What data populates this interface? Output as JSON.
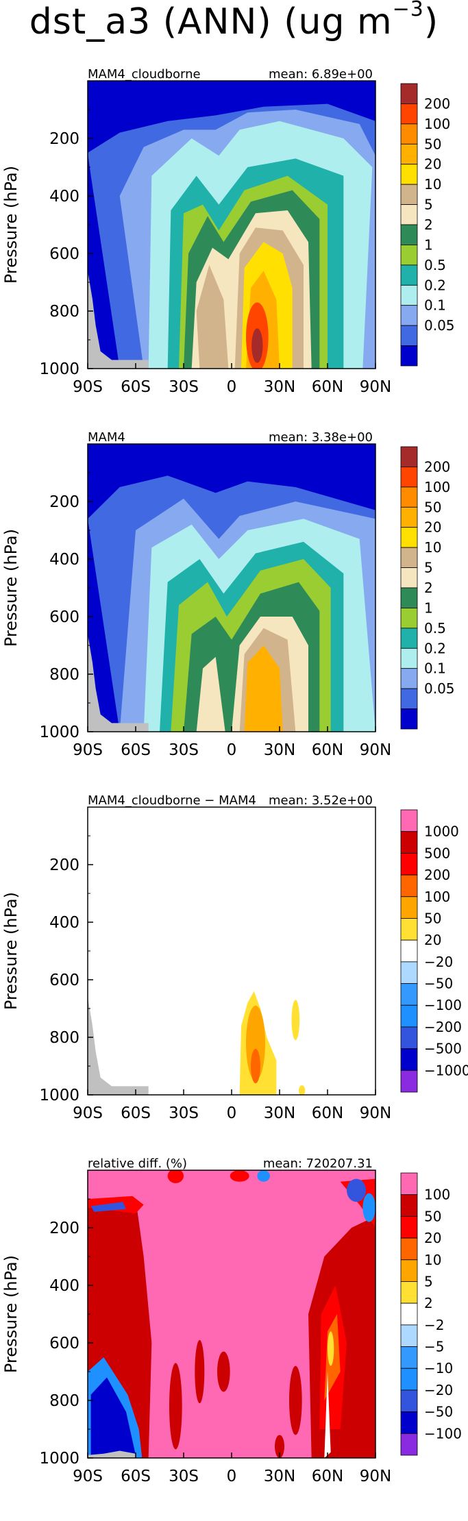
{
  "figure": {
    "title_main": "dst_a3 (ANN) (ug m",
    "title_exp": "−3",
    "title_close": ")"
  },
  "axes": {
    "ylabel": "Pressure (hPa)",
    "yticks": [
      200,
      400,
      600,
      800,
      1000
    ],
    "xticks": [
      "90S",
      "60S",
      "30S",
      "0",
      "30N",
      "60N",
      "90N"
    ],
    "xrange": [
      -90,
      90
    ],
    "yrange": [
      0,
      1000
    ]
  },
  "colorbars": {
    "abs": {
      "labels": [
        "200",
        "100",
        "50",
        "20",
        "10",
        "5",
        "2",
        "1",
        "0.5",
        "0.2",
        "0.1",
        "0.05"
      ],
      "colors": [
        "#A52A2A",
        "#FF4500",
        "#FF8C00",
        "#FFB000",
        "#FFE000",
        "#D2B48C",
        "#F5E6C0",
        "#2E8B57",
        "#9ACD32",
        "#20B2AA",
        "#AFEEEE",
        "#87A9F0",
        "#4169E1",
        "#0000CD"
      ]
    },
    "diff": {
      "labels": [
        "1000",
        "500",
        "200",
        "100",
        "50",
        "20",
        "−20",
        "−50",
        "−100",
        "−200",
        "−500",
        "−1000"
      ],
      "colors": [
        "#FF69B4",
        "#CC0000",
        "#FF0000",
        "#FF6600",
        "#FFA500",
        "#FFE033",
        "#FFFFFF",
        "#ADD8FF",
        "#3399FF",
        "#1E90FF",
        "#3355DD",
        "#0000CD",
        "#8A2BE2"
      ]
    },
    "rel": {
      "labels": [
        "100",
        "50",
        "20",
        "10",
        "5",
        "2",
        "−2",
        "−5",
        "−10",
        "−20",
        "−50",
        "−100"
      ],
      "colors": [
        "#FF69B4",
        "#CC0000",
        "#FF0000",
        "#FF6600",
        "#FFA500",
        "#FFE033",
        "#FFFFFF",
        "#ADD8FF",
        "#3399FF",
        "#1E90FF",
        "#3355DD",
        "#0000CD",
        "#8A2BE2"
      ]
    }
  },
  "panels": [
    {
      "name": "MAM4_cloudborne",
      "mean": "mean: 6.89e+00"
    },
    {
      "name": "MAM4",
      "mean": "mean: 3.38e+00"
    },
    {
      "name": "MAM4_cloudborne − MAM4",
      "mean": "mean: 3.52e+00"
    },
    {
      "name": "relative diff. (%)",
      "mean": "mean: 720207.31"
    }
  ],
  "chart_data": [
    {
      "type": "heatmap",
      "title": "MAM4_cloudborne",
      "subtitle": "mean: 6.89e+00",
      "ylabel": "Pressure (hPa)",
      "xlim": [
        -90,
        90
      ],
      "ylim": [
        1000,
        0
      ],
      "levels": [
        0.05,
        0.1,
        0.2,
        0.5,
        1,
        2,
        5,
        10,
        20,
        50,
        100,
        200
      ],
      "approx_maxima": [
        {
          "lat": 15,
          "pressure": 930,
          "value": 100
        }
      ]
    },
    {
      "type": "heatmap",
      "title": "MAM4",
      "subtitle": "mean: 3.38e+00",
      "ylabel": "Pressure (hPa)",
      "xlim": [
        -90,
        90
      ],
      "ylim": [
        1000,
        0
      ],
      "levels": [
        0.05,
        0.1,
        0.2,
        0.5,
        1,
        2,
        5,
        10,
        20,
        50,
        100,
        200
      ],
      "approx_maxima": [
        {
          "lat": 15,
          "pressure": 900,
          "value": 20
        }
      ]
    },
    {
      "type": "heatmap",
      "title": "MAM4_cloudborne − MAM4",
      "subtitle": "mean: 3.52e+00",
      "ylabel": "Pressure (hPa)",
      "xlim": [
        -90,
        90
      ],
      "ylim": [
        1000,
        0
      ],
      "levels": [
        -1000,
        -500,
        -200,
        -100,
        -50,
        -20,
        20,
        50,
        100,
        200,
        500,
        1000
      ],
      "approx_maxima": [
        {
          "lat": 15,
          "pressure": 900,
          "value": 50
        }
      ]
    },
    {
      "type": "heatmap",
      "title": "relative diff. (%)",
      "subtitle": "mean: 720207.31",
      "ylabel": "Pressure (hPa)",
      "xlim": [
        -90,
        90
      ],
      "ylim": [
        1000,
        0
      ],
      "levels": [
        -100,
        -50,
        -20,
        -10,
        -5,
        -2,
        2,
        5,
        10,
        20,
        50,
        100
      ]
    }
  ]
}
